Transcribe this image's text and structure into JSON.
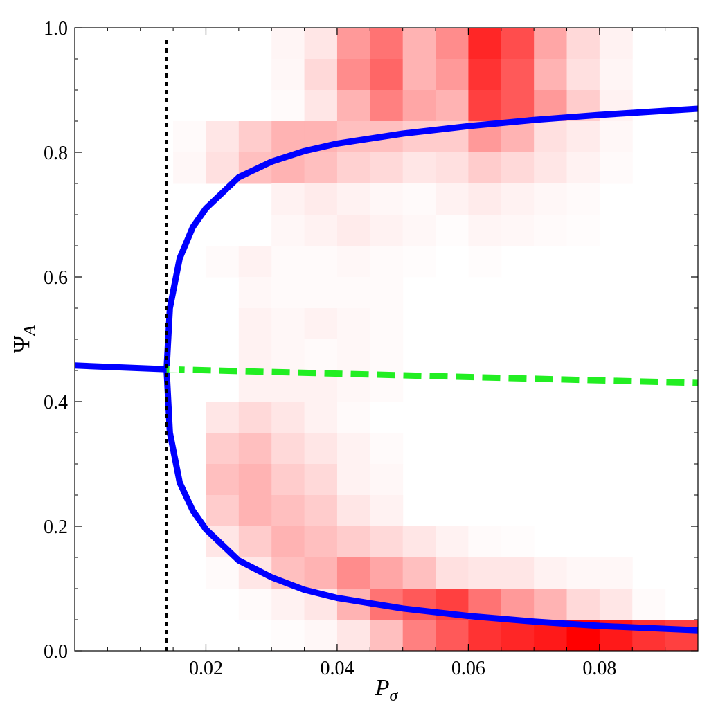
{
  "chart_data": {
    "type": "heatmap",
    "title": "",
    "xlabel": {
      "main": "P",
      "sub": "σ"
    },
    "ylabel": {
      "main": "Ψ",
      "sub": "A"
    },
    "xlim": [
      0.0,
      0.095
    ],
    "ylim": [
      0.0,
      1.0
    ],
    "x_ticks": [
      0.02,
      0.04,
      0.06,
      0.08
    ],
    "x_tick_labels": [
      "0.02",
      "0.04",
      "0.06",
      "0.08"
    ],
    "y_ticks": [
      0.0,
      0.2,
      0.4,
      0.6,
      0.8,
      1.0
    ],
    "y_tick_labels": [
      "0.0",
      "0.2",
      "0.4",
      "0.6",
      "0.8",
      "1.0"
    ],
    "grid": false,
    "colors": {
      "heat": "#ff0000",
      "stable_branch": "#0000ff",
      "unstable_branch": "#22ee22",
      "critical_line": "#000000"
    },
    "heatmap": {
      "x_bin_width": 0.005,
      "y_bin_width": 0.05,
      "intensity": [
        [
          0,
          0,
          0,
          0,
          0,
          0,
          0.04,
          0.1,
          0.4,
          0.55,
          0.3,
          0.45,
          0.85,
          0.7,
          0.35,
          0.15,
          0.05,
          0,
          0,
          0
        ],
        [
          0,
          0,
          0,
          0,
          0,
          0,
          0.03,
          0.15,
          0.45,
          0.6,
          0.3,
          0.4,
          0.8,
          0.65,
          0.3,
          0.12,
          0.04,
          0,
          0,
          0
        ],
        [
          0,
          0,
          0,
          0,
          0,
          0,
          0.02,
          0.1,
          0.3,
          0.5,
          0.35,
          0.3,
          0.75,
          0.65,
          0.4,
          0.2,
          0.05,
          0,
          0,
          0
        ],
        [
          0,
          0,
          0,
          0.02,
          0.1,
          0.2,
          0.3,
          0.3,
          0.25,
          0.25,
          0.2,
          0.2,
          0.4,
          0.3,
          0.12,
          0.08,
          0.03,
          0,
          0,
          0
        ],
        [
          0,
          0,
          0,
          0.03,
          0.12,
          0.25,
          0.3,
          0.25,
          0.18,
          0.15,
          0.1,
          0.12,
          0.2,
          0.15,
          0.1,
          0.05,
          0.02,
          0,
          0,
          0
        ],
        [
          0,
          0,
          0,
          0,
          0,
          0,
          0.05,
          0.08,
          0.05,
          0.03,
          0.02,
          0.05,
          0.08,
          0.05,
          0.03,
          0.02,
          0,
          0,
          0,
          0
        ],
        [
          0,
          0,
          0,
          0,
          0,
          0,
          0.03,
          0.05,
          0.08,
          0.05,
          0.03,
          0.01,
          0.04,
          0.03,
          0.02,
          0.01,
          0,
          0,
          0,
          0
        ],
        [
          0,
          0,
          0,
          0,
          0.02,
          0.05,
          0.02,
          0.02,
          0.03,
          0.02,
          0.01,
          0,
          0.01,
          0,
          0,
          0,
          0,
          0,
          0,
          0
        ],
        [
          0,
          0,
          0,
          0,
          0,
          0.03,
          0.02,
          0.02,
          0.02,
          0.02,
          0,
          0,
          0,
          0,
          0,
          0,
          0,
          0,
          0,
          0
        ],
        [
          0,
          0,
          0,
          0,
          0,
          0.05,
          0.03,
          0.05,
          0.03,
          0.02,
          0,
          0,
          0,
          0,
          0,
          0,
          0,
          0,
          0,
          0
        ],
        [
          0,
          0,
          0,
          0,
          0,
          0.05,
          0.03,
          0.02,
          0.03,
          0.02,
          0,
          0,
          0,
          0,
          0,
          0,
          0,
          0,
          0,
          0
        ],
        [
          0,
          0,
          0,
          0,
          0,
          0.05,
          0.05,
          0.05,
          0.03,
          0.02,
          0,
          0,
          0,
          0,
          0,
          0,
          0,
          0,
          0,
          0
        ],
        [
          0,
          0,
          0,
          0,
          0.1,
          0.15,
          0.1,
          0.05,
          0.02,
          0,
          0,
          0,
          0,
          0,
          0,
          0,
          0,
          0,
          0,
          0
        ],
        [
          0,
          0,
          0,
          0,
          0.2,
          0.25,
          0.15,
          0.1,
          0.05,
          0.02,
          0,
          0,
          0,
          0,
          0,
          0,
          0,
          0,
          0,
          0
        ],
        [
          0,
          0,
          0,
          0,
          0.25,
          0.3,
          0.2,
          0.15,
          0.05,
          0.03,
          0,
          0,
          0,
          0,
          0,
          0,
          0,
          0,
          0,
          0
        ],
        [
          0,
          0,
          0,
          0,
          0.2,
          0.3,
          0.25,
          0.2,
          0.1,
          0.05,
          0,
          0,
          0,
          0,
          0,
          0,
          0,
          0,
          0,
          0
        ],
        [
          0,
          0,
          0,
          0,
          0.1,
          0.2,
          0.3,
          0.25,
          0.2,
          0.15,
          0.1,
          0.05,
          0.02,
          0.01,
          0,
          0,
          0,
          0,
          0,
          0
        ],
        [
          0,
          0,
          0,
          0,
          0.02,
          0.1,
          0.25,
          0.3,
          0.45,
          0.35,
          0.25,
          0.12,
          0.1,
          0.1,
          0.05,
          0.03,
          0.03,
          0,
          0,
          0
        ],
        [
          0,
          0,
          0,
          0,
          0,
          0.02,
          0.05,
          0.1,
          0.3,
          0.55,
          0.65,
          0.75,
          0.55,
          0.4,
          0.3,
          0.15,
          0.1,
          0.02,
          0,
          0
        ],
        [
          0,
          0,
          0,
          0,
          0,
          0,
          0.01,
          0.03,
          0.1,
          0.25,
          0.5,
          0.65,
          0.8,
          0.85,
          0.9,
          1.0,
          0.9,
          0.8,
          0.75,
          0.7
        ],
        [
          0,
          0,
          0,
          0,
          0,
          0,
          0,
          0,
          0.02,
          0.05,
          0.08,
          0.25,
          0.45,
          0.65,
          0.75,
          0.8,
          0.95,
          1.0,
          0.9,
          0.85
        ]
      ],
      "_note_rows": "rows ordered from y = 0.00–0.05 bin upward is NOT used; see row order below"
    },
    "series": [
      {
        "style": "solid",
        "color": "#0000ff",
        "points": [
          [
            0.0,
            0.458
          ],
          [
            0.014,
            0.452
          ]
        ]
      },
      {
        "style": "solid",
        "color": "#0000ff",
        "points": [
          [
            0.014,
            0.452
          ],
          [
            0.0145,
            0.55
          ],
          [
            0.016,
            0.63
          ],
          [
            0.018,
            0.68
          ],
          [
            0.02,
            0.71
          ],
          [
            0.025,
            0.76
          ],
          [
            0.03,
            0.785
          ],
          [
            0.035,
            0.802
          ],
          [
            0.04,
            0.814
          ],
          [
            0.05,
            0.83
          ],
          [
            0.06,
            0.842
          ],
          [
            0.07,
            0.852
          ],
          [
            0.08,
            0.86
          ],
          [
            0.095,
            0.87
          ]
        ]
      },
      {
        "style": "solid",
        "color": "#0000ff",
        "points": [
          [
            0.014,
            0.452
          ],
          [
            0.0145,
            0.35
          ],
          [
            0.016,
            0.27
          ],
          [
            0.018,
            0.225
          ],
          [
            0.02,
            0.195
          ],
          [
            0.025,
            0.145
          ],
          [
            0.03,
            0.118
          ],
          [
            0.035,
            0.098
          ],
          [
            0.04,
            0.085
          ],
          [
            0.05,
            0.068
          ],
          [
            0.06,
            0.056
          ],
          [
            0.07,
            0.047
          ],
          [
            0.08,
            0.04
          ],
          [
            0.095,
            0.033
          ]
        ]
      },
      {
        "style": "dashed",
        "color": "#22ee22",
        "points": [
          [
            0.014,
            0.452
          ],
          [
            0.095,
            0.43
          ]
        ]
      },
      {
        "style": "dotted",
        "color": "#000000",
        "points": [
          [
            0.014,
            0.0
          ],
          [
            0.014,
            0.98
          ]
        ]
      }
    ]
  }
}
